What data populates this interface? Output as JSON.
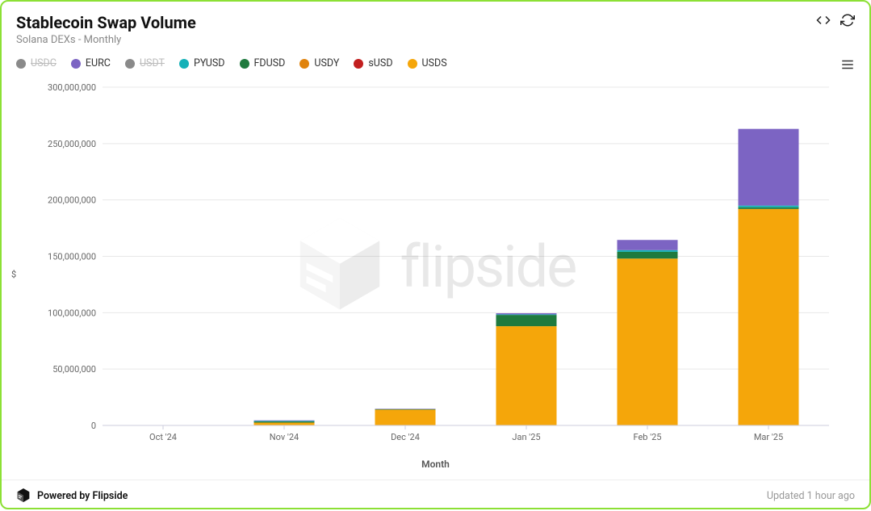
{
  "header": {
    "title": "Stablecoin Swap Volume",
    "subtitle": "Solana DEXs - Monthly"
  },
  "legend": {
    "items": [
      {
        "key": "USDC",
        "label": "USDC",
        "color": "#8a8a8a",
        "off": true
      },
      {
        "key": "EURC",
        "label": "EURC",
        "color": "#7c64c3",
        "off": false
      },
      {
        "key": "USDT",
        "label": "USDT",
        "color": "#8a8a8a",
        "off": true
      },
      {
        "key": "PYUSD",
        "label": "PYUSD",
        "color": "#15b1b8",
        "off": false
      },
      {
        "key": "FDUSD",
        "label": "FDUSD",
        "color": "#1f7a3e",
        "off": false
      },
      {
        "key": "USDY",
        "label": "USDY",
        "color": "#e0830d",
        "off": false
      },
      {
        "key": "sUSD",
        "label": "sUSD",
        "color": "#c21f1f",
        "off": false
      },
      {
        "key": "USDS",
        "label": "USDS",
        "color": "#f5a60a",
        "off": false
      }
    ]
  },
  "chart": {
    "type": "stacked-bar",
    "categories": [
      "Oct '24",
      "Nov '24",
      "Dec '24",
      "Jan '25",
      "Feb '25",
      "Mar '25"
    ],
    "y_axis": {
      "title": "$",
      "min": 0,
      "max": 300000000,
      "tick_step": 50000000,
      "tick_labels": [
        "0",
        "50,000,000",
        "100,000,000",
        "150,000,000",
        "200,000,000",
        "250,000,000",
        "300,000,000"
      ]
    },
    "x_axis": {
      "title": "Month"
    },
    "series_order": [
      "USDS",
      "sUSD",
      "USDY",
      "FDUSD",
      "PYUSD",
      "EURC"
    ],
    "data": {
      "Oct '24": {
        "USDS": 100000,
        "sUSD": 0,
        "USDY": 0,
        "FDUSD": 0,
        "PYUSD": 0,
        "EURC": 0
      },
      "Nov '24": {
        "USDS": 2500000,
        "sUSD": 0,
        "USDY": 0,
        "FDUSD": 1000000,
        "PYUSD": 500000,
        "EURC": 500000
      },
      "Dec '24": {
        "USDS": 14000000,
        "sUSD": 0,
        "USDY": 0,
        "FDUSD": 500000,
        "PYUSD": 0,
        "EURC": 300000
      },
      "Jan '25": {
        "USDS": 88000000,
        "sUSD": 0,
        "USDY": 0,
        "FDUSD": 10000000,
        "PYUSD": 500000,
        "EURC": 1000000
      },
      "Feb '25": {
        "USDS": 148000000,
        "sUSD": 0,
        "USDY": 0,
        "FDUSD": 6000000,
        "PYUSD": 1500000,
        "EURC": 9000000
      },
      "Mar '25": {
        "USDS": 192000000,
        "sUSD": 0,
        "USDY": 0,
        "FDUSD": 1500000,
        "PYUSD": 1500000,
        "EURC": 68000000
      }
    },
    "bar_width_ratio": 0.5,
    "background_color": "#ffffff",
    "grid_color": "#e8e8e8",
    "label_fontsize": 11,
    "axis_title_fontsize": 12
  },
  "watermark": {
    "text": "flipside"
  },
  "footer": {
    "powered_by": "Powered by Flipside",
    "updated": "Updated 1 hour ago"
  },
  "colors": {
    "border": "#8ce035",
    "text_primary": "#111",
    "text_secondary": "#888"
  }
}
